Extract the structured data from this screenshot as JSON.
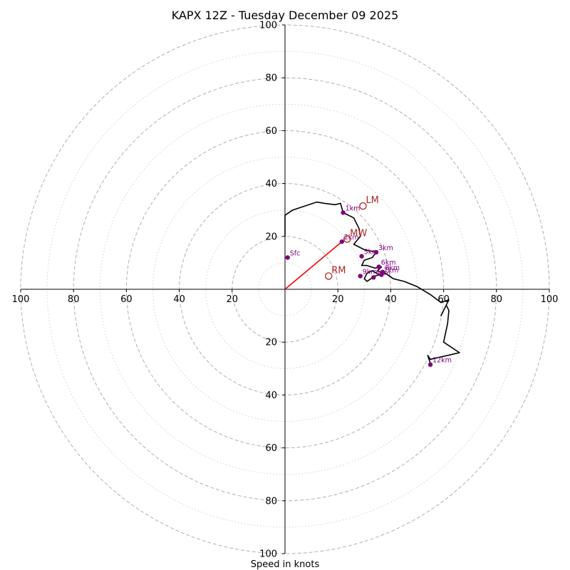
{
  "chart_data": {
    "type": "line",
    "title": "KAPX 12Z - Tuesday December 09 2025",
    "xlabel": "Speed in knots",
    "ylabel": "",
    "axis_range": [
      -100,
      100
    ],
    "tick_labels": [
      "100",
      "80",
      "60",
      "40",
      "20",
      "20",
      "40",
      "60",
      "80",
      "100"
    ],
    "tick_values": [
      -100,
      -80,
      -60,
      -40,
      -20,
      20,
      40,
      60,
      80,
      100
    ],
    "ring_major": [
      20,
      40,
      60,
      80,
      100
    ],
    "ring_minor": [
      10,
      30,
      50,
      70,
      90
    ],
    "grid": true,
    "hodograph": {
      "name": "",
      "points": [
        [
          0,
          20
        ],
        [
          0,
          28
        ],
        [
          3,
          30
        ],
        [
          12,
          33
        ],
        [
          15,
          32.5
        ],
        [
          19,
          32
        ],
        [
          21,
          32.5
        ],
        [
          22,
          29
        ],
        [
          26,
          27
        ],
        [
          27,
          25
        ],
        [
          28,
          23
        ],
        [
          28.5,
          20
        ],
        [
          26,
          17
        ],
        [
          28,
          16
        ],
        [
          30,
          15
        ],
        [
          34.5,
          14
        ],
        [
          33,
          12
        ],
        [
          30,
          11
        ],
        [
          29,
          9
        ],
        [
          31,
          9
        ],
        [
          34,
          8
        ],
        [
          36.5,
          8.5
        ],
        [
          35,
          7
        ],
        [
          37,
          6
        ],
        [
          36.5,
          5
        ],
        [
          33,
          7
        ],
        [
          31,
          6
        ],
        [
          30,
          4
        ],
        [
          31,
          3
        ],
        [
          34,
          5
        ],
        [
          38,
          6
        ],
        [
          41,
          4
        ],
        [
          45,
          3
        ],
        [
          50,
          1
        ],
        [
          55,
          -2
        ],
        [
          59,
          -5
        ],
        [
          62,
          -4
        ],
        [
          59,
          -10
        ],
        [
          61,
          -6
        ],
        [
          62,
          -8
        ],
        [
          61.5,
          -13
        ],
        [
          60,
          -20
        ],
        [
          66,
          -24
        ],
        [
          55,
          -26.5
        ],
        [
          54,
          -25
        ],
        [
          55,
          -28
        ]
      ]
    },
    "height_markers": [
      {
        "label": "Sfc",
        "u": 1,
        "v": 12
      },
      {
        "label": "1km",
        "u": 22,
        "v": 29
      },
      {
        "label": "2km",
        "u": 21.5,
        "v": 18
      },
      {
        "label": "3km",
        "u": 34.5,
        "v": 14
      },
      {
        "label": "4km",
        "u": 33.5,
        "v": 4.5
      },
      {
        "label": "5km",
        "u": 29,
        "v": 12.5
      },
      {
        "label": "6km",
        "u": 35.5,
        "v": 8.5
      },
      {
        "label": "7km",
        "u": 36.5,
        "v": 5.5
      },
      {
        "label": "8km",
        "u": 37,
        "v": 6.5
      },
      {
        "label": "9km",
        "u": 28.5,
        "v": 5
      },
      {
        "label": "12km",
        "u": 55,
        "v": -28.5
      }
    ],
    "motion_markers": [
      {
        "label": "LM",
        "u": 29.5,
        "v": 31.5
      },
      {
        "label": "MW",
        "u": 23.5,
        "v": 19
      },
      {
        "label": "RM",
        "u": 16.5,
        "v": 5
      }
    ],
    "shear_vector": {
      "from": [
        0,
        0
      ],
      "to": [
        21.5,
        18
      ]
    },
    "colors": {
      "hodograph": "#000000",
      "height_marker": "#800080",
      "motion_marker": "#b22222",
      "shear_vector": "#ff0000",
      "major_grid": "#b0b0b0",
      "minor_grid": "#d0d0d0",
      "axis": "#000000"
    }
  }
}
